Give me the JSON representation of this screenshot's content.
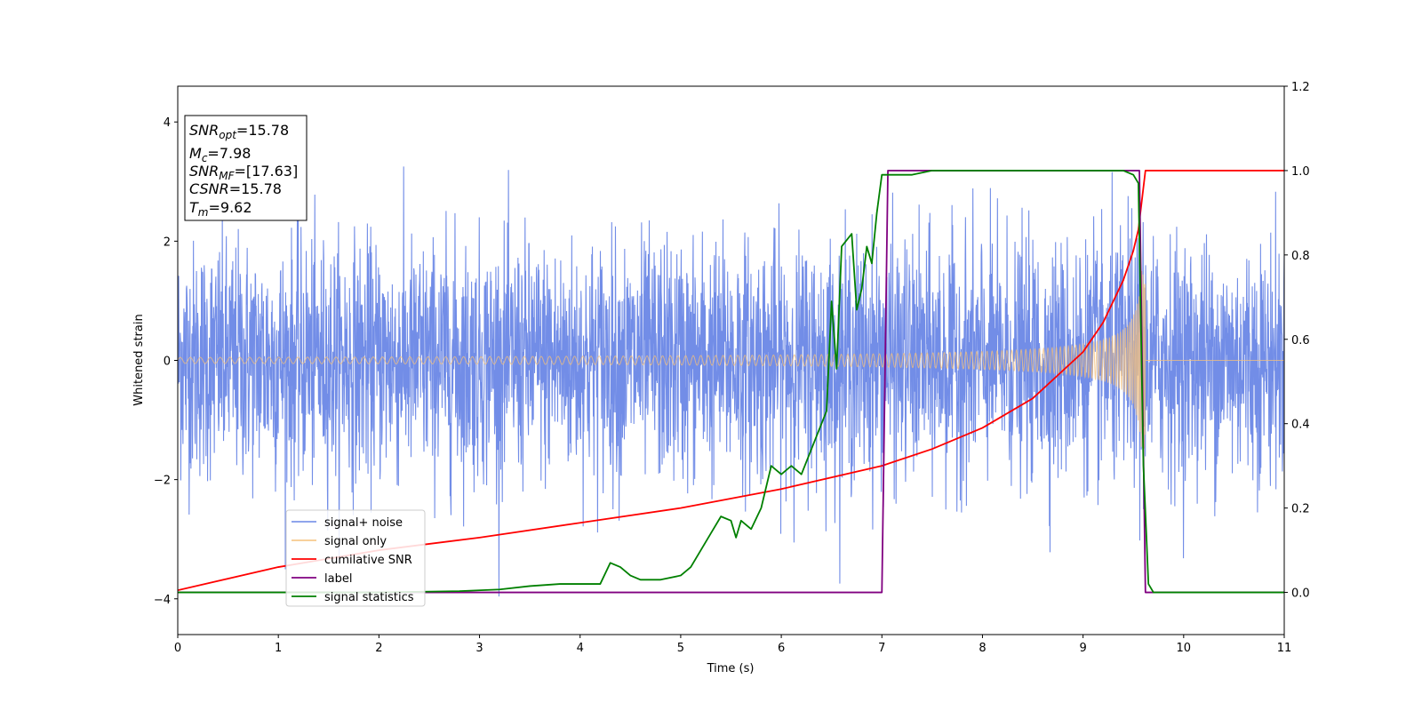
{
  "chart_data": {
    "type": "line",
    "xlabel": "Time (s)",
    "ylabel": "Whitened strain",
    "xlim": [
      0,
      11
    ],
    "ylim_left": [
      -4.6,
      4.6
    ],
    "ylim_right": [
      -0.1,
      1.2
    ],
    "x_ticks": [
      0,
      1,
      2,
      3,
      4,
      5,
      6,
      7,
      8,
      9,
      10,
      11
    ],
    "y_ticks_left": [
      -4,
      -2,
      0,
      2,
      4
    ],
    "y_ticks_right": [
      0.0,
      0.2,
      0.4,
      0.6,
      0.8,
      1.0,
      1.2
    ],
    "x_tick_labels": [
      "0",
      "1",
      "2",
      "3",
      "4",
      "5",
      "6",
      "7",
      "8",
      "9",
      "10",
      "11"
    ],
    "y_tick_labels_left": [
      "−4",
      "−2",
      "0",
      "2",
      "4"
    ],
    "y_tick_labels_right": [
      "0.0",
      "0.2",
      "0.4",
      "0.6",
      "0.8",
      "1.0",
      "1.2"
    ],
    "grid": false,
    "legend_position": "lower-left",
    "info_box": {
      "snr_opt": {
        "base": "SNR",
        "sub": "opt",
        "value": "=15.78"
      },
      "mc": {
        "base": "M",
        "sub": "c",
        "value": "=7.98"
      },
      "snr_mf": {
        "base": "SNR",
        "sub": "MF",
        "value": "=[17.63]"
      },
      "csnr": {
        "base": "CSNR",
        "sub": "",
        "value": "=15.78"
      },
      "tm": {
        "base": "T",
        "sub": "m",
        "value": "=9.62"
      }
    },
    "series": [
      {
        "name": "signal+ noise",
        "axis": "left",
        "color": "#6a87e6",
        "description_values": {
          "noise_std": 1.0,
          "peak_max": 4.17,
          "peak_min": -4.12,
          "merger_time": 9.62
        }
      },
      {
        "name": "signal only",
        "axis": "left",
        "color": "#f5c07a",
        "description_values": {
          "start_amplitude": 0.05,
          "peak_amplitude": 1.5,
          "merger_time": 9.62
        }
      },
      {
        "name": "cumilative SNR",
        "axis": "right",
        "color": "#ff0000",
        "x": [
          0,
          1,
          2,
          3,
          4,
          5,
          6,
          7,
          7.5,
          8,
          8.5,
          9,
          9.2,
          9.4,
          9.5,
          9.55,
          9.62,
          11
        ],
        "y": [
          0.005,
          0.06,
          0.1,
          0.13,
          0.165,
          0.2,
          0.245,
          0.3,
          0.34,
          0.39,
          0.46,
          0.57,
          0.64,
          0.74,
          0.81,
          0.86,
          1.0,
          1.0
        ]
      },
      {
        "name": "label",
        "axis": "right",
        "color": "#800080",
        "x": [
          0,
          7.0,
          7.06,
          9.56,
          9.62,
          11
        ],
        "y": [
          0,
          0,
          1,
          1,
          0,
          0
        ]
      },
      {
        "name": "signal statistics",
        "axis": "right",
        "color": "#008000",
        "x": [
          0,
          1,
          2,
          2.8,
          3.2,
          3.5,
          3.8,
          4.0,
          4.2,
          4.3,
          4.4,
          4.5,
          4.6,
          4.8,
          5.0,
          5.1,
          5.2,
          5.3,
          5.4,
          5.5,
          5.55,
          5.6,
          5.7,
          5.8,
          5.9,
          6.0,
          6.1,
          6.2,
          6.3,
          6.4,
          6.45,
          6.5,
          6.55,
          6.6,
          6.7,
          6.75,
          6.8,
          6.85,
          6.9,
          6.95,
          7.0,
          7.1,
          7.3,
          7.5,
          7.7,
          8.0,
          8.5,
          9.0,
          9.4,
          9.5,
          9.55,
          9.6,
          9.65,
          9.7,
          11
        ],
        "y": [
          0,
          0,
          0,
          0.003,
          0.007,
          0.015,
          0.02,
          0.02,
          0.02,
          0.07,
          0.06,
          0.04,
          0.03,
          0.03,
          0.04,
          0.06,
          0.1,
          0.14,
          0.18,
          0.17,
          0.13,
          0.17,
          0.15,
          0.2,
          0.3,
          0.28,
          0.3,
          0.28,
          0.34,
          0.4,
          0.43,
          0.69,
          0.53,
          0.82,
          0.85,
          0.67,
          0.72,
          0.82,
          0.78,
          0.9,
          0.99,
          0.99,
          0.99,
          1.0,
          1.0,
          1.0,
          1.0,
          1.0,
          1.0,
          0.99,
          0.97,
          0.3,
          0.02,
          0.0,
          0.0
        ]
      }
    ]
  }
}
